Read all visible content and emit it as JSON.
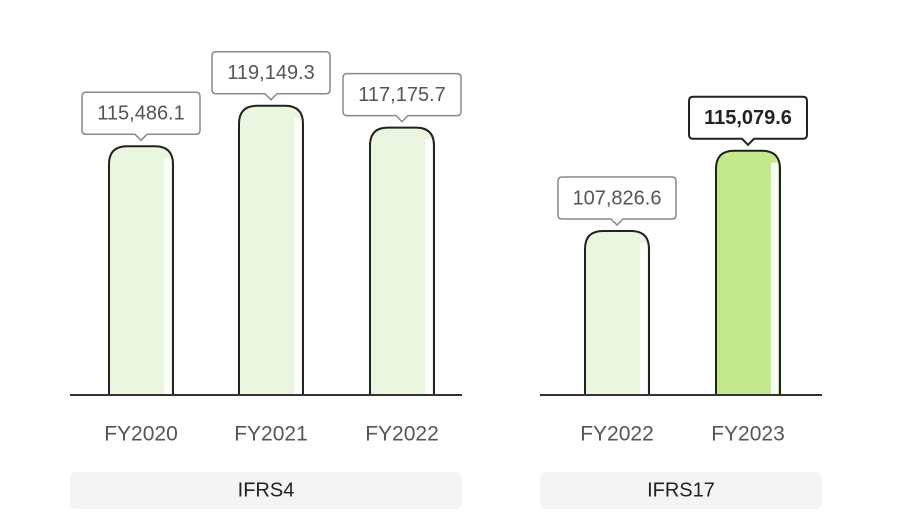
{
  "chart_data": [
    {
      "type": "bar",
      "group": "IFRS4",
      "categories": [
        "FY2020",
        "FY2021",
        "FY2022"
      ],
      "values": [
        115486.1,
        119149.3,
        117175.7
      ],
      "value_labels": [
        "115,486.1",
        "119,149.3",
        "117,175.7"
      ],
      "colors": [
        "#ebf6e0",
        "#ebf6e0",
        "#ebf6e0"
      ],
      "label_weights": [
        "normal",
        "normal",
        "normal"
      ],
      "ylim": [
        93000,
        126000
      ]
    },
    {
      "type": "bar",
      "group": "IFRS17",
      "categories": [
        "FY2022",
        "FY2023"
      ],
      "values": [
        107826.6,
        115079.6
      ],
      "value_labels": [
        "107,826.6",
        "115,079.6"
      ],
      "colors": [
        "#ebf6e0",
        "#c4e88e"
      ],
      "label_weights": [
        "normal",
        "bold"
      ],
      "ylim": [
        93000,
        126000
      ]
    }
  ]
}
